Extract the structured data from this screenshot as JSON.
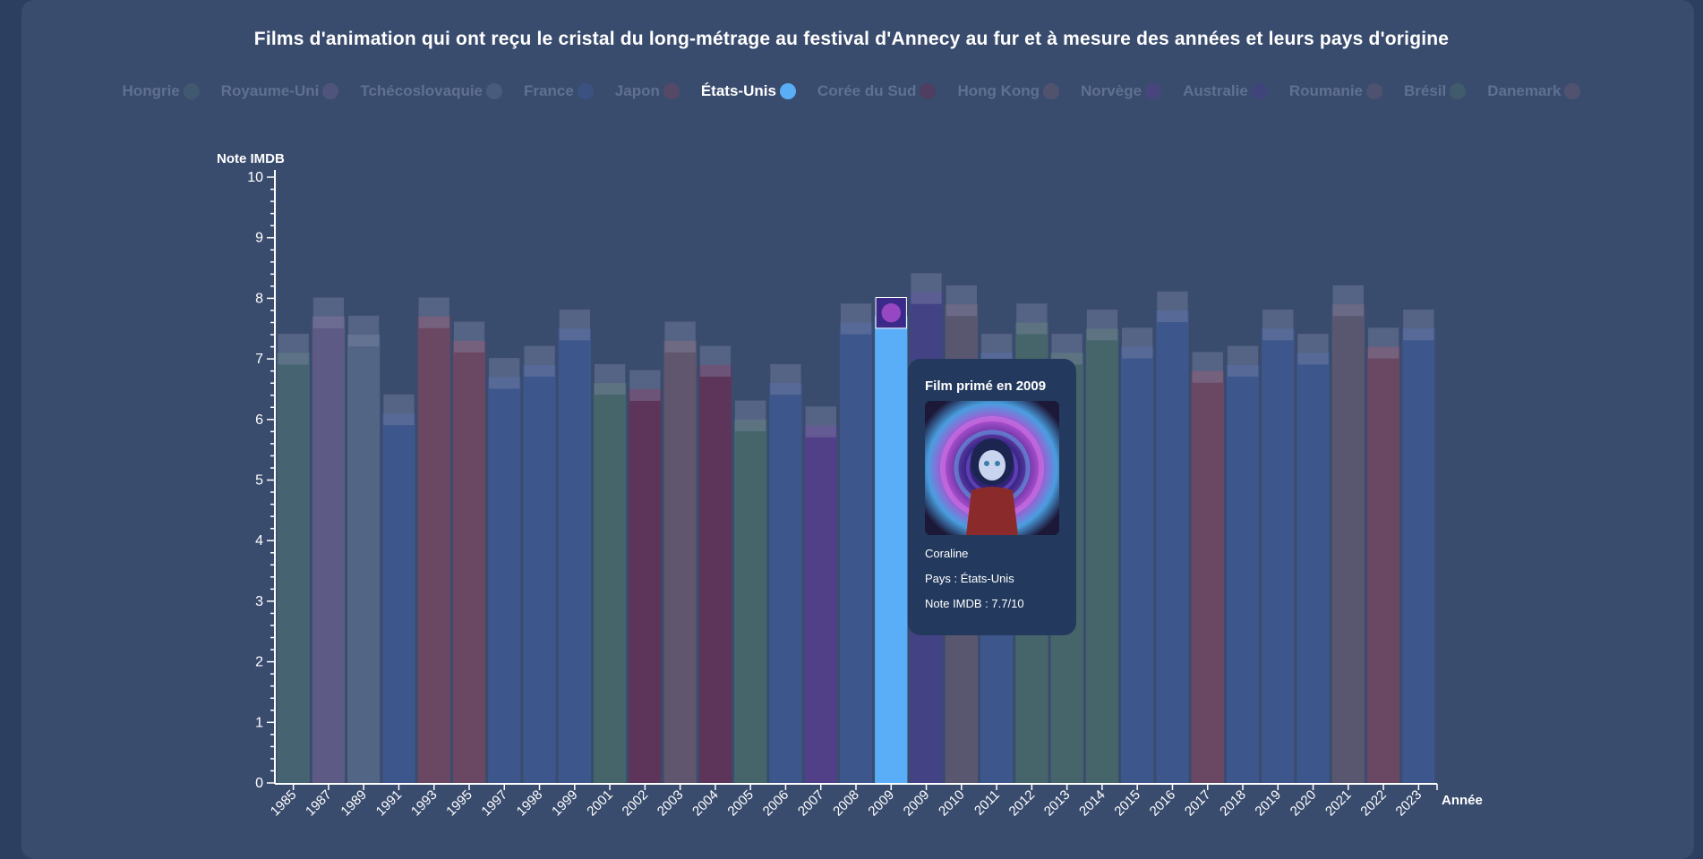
{
  "chart_data": {
    "type": "bar",
    "title": "Films d'animation qui ont reçu le cristal du long-métrage au festival d'Annecy au fur et à mesure des années et leurs pays d'origine",
    "ylabel": "Note IMDB",
    "xlabel": "Année",
    "ylim": [
      0,
      10
    ],
    "yticks": [
      "0",
      "1",
      "2",
      "3",
      "4",
      "5",
      "6",
      "7",
      "8",
      "9",
      "10"
    ],
    "categories": [
      "1985",
      "1987",
      "1989",
      "1991",
      "1993",
      "1995",
      "1997",
      "1998",
      "1999",
      "2001",
      "2002",
      "2003",
      "2004",
      "2005",
      "2006",
      "2007",
      "2008",
      "2009",
      "2009",
      "2010",
      "2011",
      "2012",
      "2013",
      "2014",
      "2015",
      "2016",
      "2017",
      "2018",
      "2019",
      "2020",
      "2021",
      "2022",
      "2023"
    ],
    "values": [
      7.1,
      7.7,
      7.4,
      6.1,
      7.7,
      7.3,
      6.7,
      6.9,
      7.5,
      6.6,
      6.5,
      7.3,
      6.9,
      6.0,
      6.6,
      5.9,
      7.6,
      7.7,
      8.1,
      7.9,
      7.1,
      7.6,
      7.1,
      7.5,
      7.2,
      7.8,
      6.8,
      6.9,
      7.5,
      7.1,
      7.9,
      7.2,
      7.5
    ],
    "countries": [
      "Hongrie",
      "Royaume-Uni",
      "Tchécoslovaquie",
      "France",
      "Japon",
      "Japon",
      "France",
      "France",
      "France",
      "Brésil",
      "Corée du Sud",
      "Hong Kong",
      "Corée du Sud",
      "Brésil",
      "France",
      "Norvège",
      "France",
      "États-Unis",
      "Australie",
      "Roumanie",
      "France",
      "Brésil",
      "Brésil",
      "Brésil",
      "France",
      "France",
      "Japon",
      "France",
      "France",
      "France",
      "Roumanie",
      "Japon",
      "France"
    ],
    "highlighted": "États-Unis",
    "legend": [
      {
        "name": "Hongrie",
        "color": "#4b6b73"
      },
      {
        "name": "Royaume-Uni",
        "color": "#6a5f8e"
      },
      {
        "name": "Tchécoslovaquie",
        "color": "#5b6e8e"
      },
      {
        "name": "France",
        "color": "#3f5a96"
      },
      {
        "name": "Japon",
        "color": "#7b4560"
      },
      {
        "name": "États-Unis",
        "color": "#5aaef8"
      },
      {
        "name": "Corée du Sud",
        "color": "#6a2d55"
      },
      {
        "name": "Hong Kong",
        "color": "#6e5a6e"
      },
      {
        "name": "Norvège",
        "color": "#5a3b90"
      },
      {
        "name": "Australie",
        "color": "#473f8c"
      },
      {
        "name": "Roumanie",
        "color": "#645a72"
      },
      {
        "name": "Brésil",
        "color": "#4a6e6a"
      },
      {
        "name": "Danemark",
        "color": "#6e5a72"
      }
    ],
    "legend_position": "top",
    "grid": false
  },
  "tooltip": {
    "title": "Film primé en 2009",
    "film": "Coraline",
    "country": "Pays : États-Unis",
    "rating": "Note IMDB : 7.7/10"
  }
}
